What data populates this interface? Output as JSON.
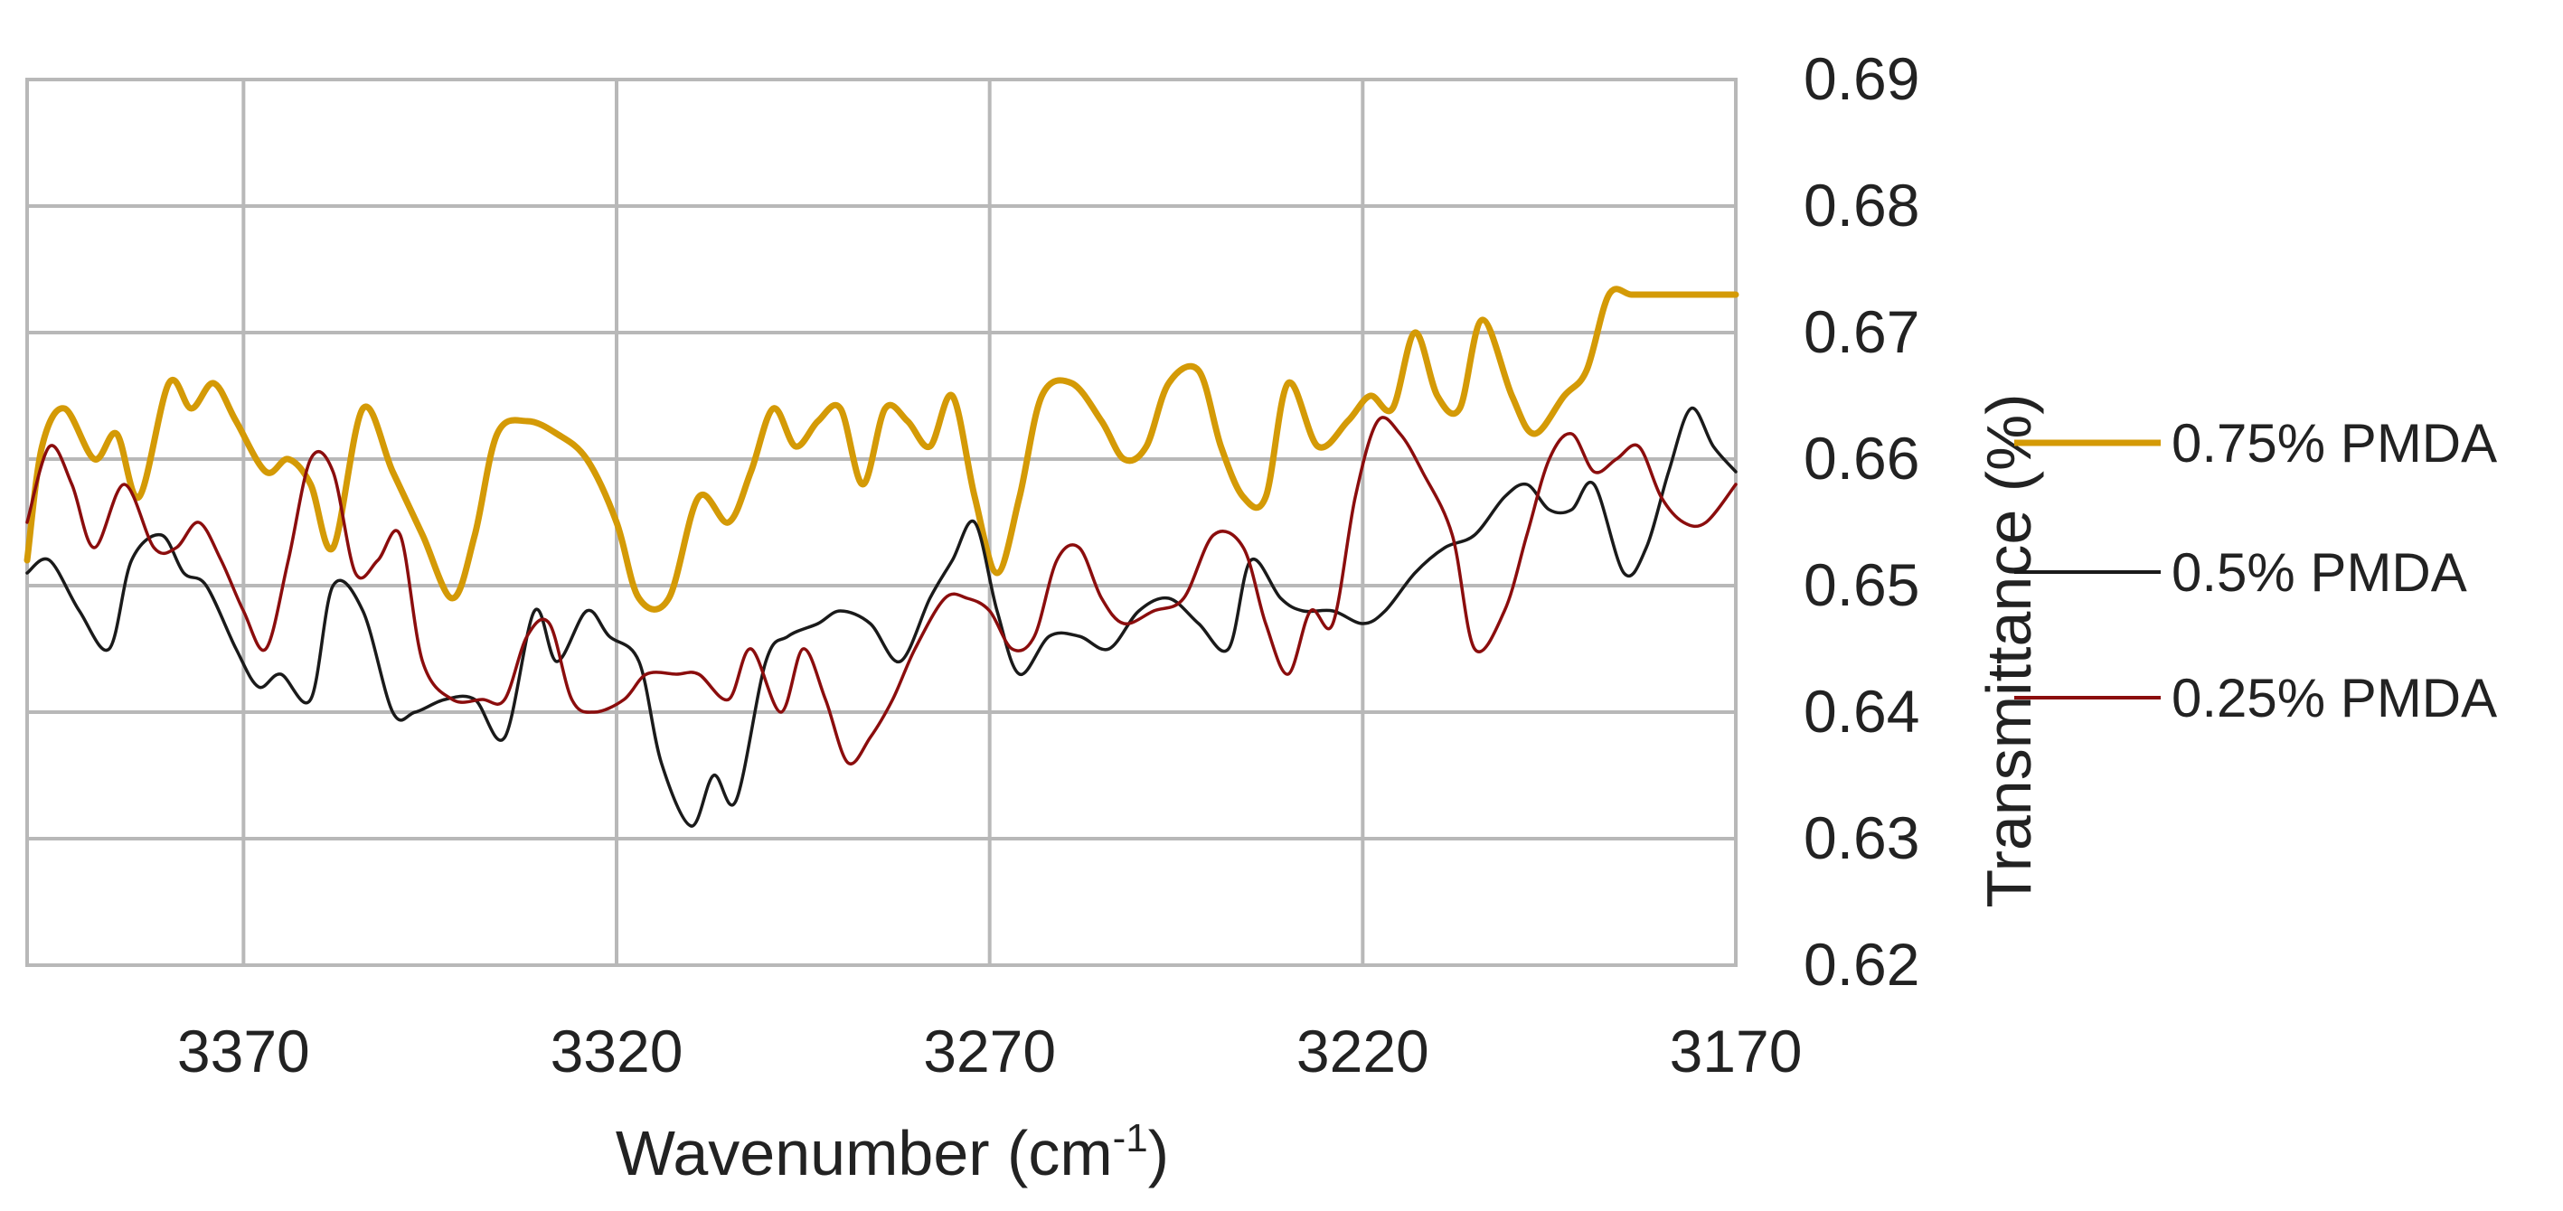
{
  "chart_data": {
    "type": "line",
    "xlabel": "Wavenumber (cm",
    "xlabel_sup": "-1",
    "xlabel_close": ")",
    "ylabel": "Transmittance (%)",
    "xlim": [
      3399,
      3170
    ],
    "xaxis_reversed": true,
    "ylim": [
      0.62,
      0.69
    ],
    "x_ticks": [
      3370,
      3320,
      3270,
      3220,
      3170
    ],
    "y_ticks": [
      0.62,
      0.63,
      0.64,
      0.65,
      0.66,
      0.67,
      0.68,
      0.69
    ],
    "grid": true,
    "legend_position": "right",
    "series": [
      {
        "name": "0.75% PMDA",
        "color": "#d49a06",
        "x": [
          3399,
          3397,
          3394,
          3390,
          3387,
          3384,
          3380,
          3377,
          3374,
          3371,
          3367,
          3364,
          3361,
          3358,
          3354,
          3350,
          3346,
          3342,
          3339,
          3336,
          3332,
          3328,
          3324,
          3320,
          3317,
          3313,
          3309,
          3305,
          3302,
          3299,
          3296,
          3293,
          3290,
          3287,
          3284,
          3281,
          3278,
          3275,
          3272,
          3269,
          3266,
          3263,
          3259,
          3255,
          3252,
          3249,
          3246,
          3242,
          3239,
          3236,
          3233,
          3230,
          3226,
          3222,
          3219,
          3216,
          3213,
          3210,
          3207,
          3204,
          3200,
          3197,
          3193,
          3190,
          3187,
          3184,
          3181,
          3178,
          3174,
          3170
        ],
        "y": [
          0.652,
          0.661,
          0.664,
          0.66,
          0.662,
          0.657,
          0.666,
          0.664,
          0.666,
          0.663,
          0.659,
          0.66,
          0.658,
          0.653,
          0.664,
          0.659,
          0.654,
          0.649,
          0.654,
          0.662,
          0.663,
          0.662,
          0.66,
          0.655,
          0.649,
          0.649,
          0.657,
          0.655,
          0.659,
          0.664,
          0.661,
          0.663,
          0.664,
          0.658,
          0.664,
          0.663,
          0.661,
          0.665,
          0.657,
          0.651,
          0.657,
          0.665,
          0.666,
          0.663,
          0.66,
          0.661,
          0.666,
          0.667,
          0.661,
          0.657,
          0.657,
          0.666,
          0.661,
          0.663,
          0.665,
          0.664,
          0.67,
          0.665,
          0.664,
          0.671,
          0.665,
          0.662,
          0.665,
          0.667,
          0.673,
          0.673,
          0.673,
          0.673,
          0.673,
          0.673
        ]
      },
      {
        "name": "0.5% PMDA",
        "color": "#1a1a1a",
        "x": [
          3399,
          3396,
          3392,
          3388,
          3385,
          3381,
          3378,
          3375,
          3371,
          3368,
          3365,
          3361,
          3358,
          3354,
          3350,
          3347,
          3343,
          3339,
          3335,
          3331,
          3328,
          3324,
          3321,
          3317,
          3314,
          3310,
          3307,
          3304,
          3300,
          3297,
          3293,
          3290,
          3286,
          3282,
          3278,
          3275,
          3272,
          3269,
          3266,
          3262,
          3258,
          3254,
          3250,
          3246,
          3242,
          3238,
          3235,
          3231,
          3228,
          3224,
          3220,
          3217,
          3213,
          3209,
          3205,
          3201,
          3198,
          3195,
          3192,
          3189,
          3185,
          3182,
          3179,
          3176,
          3173,
          3170
        ],
        "y": [
          0.651,
          0.652,
          0.648,
          0.645,
          0.652,
          0.654,
          0.651,
          0.65,
          0.645,
          0.642,
          0.643,
          0.641,
          0.65,
          0.648,
          0.64,
          0.64,
          0.641,
          0.641,
          0.638,
          0.648,
          0.644,
          0.648,
          0.646,
          0.644,
          0.636,
          0.631,
          0.635,
          0.633,
          0.644,
          0.646,
          0.647,
          0.648,
          0.647,
          0.644,
          0.649,
          0.652,
          0.655,
          0.648,
          0.643,
          0.646,
          0.646,
          0.645,
          0.648,
          0.649,
          0.647,
          0.645,
          0.652,
          0.649,
          0.648,
          0.648,
          0.647,
          0.648,
          0.651,
          0.653,
          0.654,
          0.657,
          0.658,
          0.656,
          0.656,
          0.658,
          0.651,
          0.653,
          0.659,
          0.664,
          0.661,
          0.659
        ]
      },
      {
        "name": "0.25% PMDA",
        "color": "#8b0d0d",
        "x": [
          3399,
          3396,
          3393,
          3390,
          3386,
          3382,
          3379,
          3376,
          3373,
          3370,
          3367,
          3364,
          3361,
          3358,
          3355,
          3352,
          3349,
          3346,
          3342,
          3338,
          3335,
          3332,
          3329,
          3326,
          3323,
          3319,
          3316,
          3312,
          3309,
          3305,
          3302,
          3298,
          3295,
          3292,
          3289,
          3286,
          3283,
          3280,
          3276,
          3273,
          3270,
          3267,
          3264,
          3261,
          3258,
          3255,
          3252,
          3248,
          3244,
          3240,
          3236,
          3233,
          3230,
          3227,
          3224,
          3221,
          3218,
          3215,
          3212,
          3208,
          3205,
          3201,
          3198,
          3195,
          3192,
          3189,
          3186,
          3183,
          3180,
          3177,
          3174,
          3170
        ],
        "y": [
          0.655,
          0.661,
          0.658,
          0.653,
          0.658,
          0.653,
          0.653,
          0.655,
          0.652,
          0.648,
          0.645,
          0.652,
          0.66,
          0.659,
          0.651,
          0.652,
          0.654,
          0.644,
          0.641,
          0.641,
          0.641,
          0.646,
          0.647,
          0.641,
          0.64,
          0.641,
          0.643,
          0.643,
          0.643,
          0.641,
          0.645,
          0.64,
          0.645,
          0.641,
          0.636,
          0.638,
          0.641,
          0.645,
          0.649,
          0.649,
          0.648,
          0.645,
          0.646,
          0.652,
          0.653,
          0.649,
          0.647,
          0.648,
          0.649,
          0.654,
          0.653,
          0.647,
          0.643,
          0.648,
          0.647,
          0.657,
          0.663,
          0.662,
          0.659,
          0.654,
          0.645,
          0.648,
          0.654,
          0.66,
          0.662,
          0.659,
          0.66,
          0.661,
          0.657,
          0.655,
          0.655,
          0.658
        ]
      }
    ]
  }
}
